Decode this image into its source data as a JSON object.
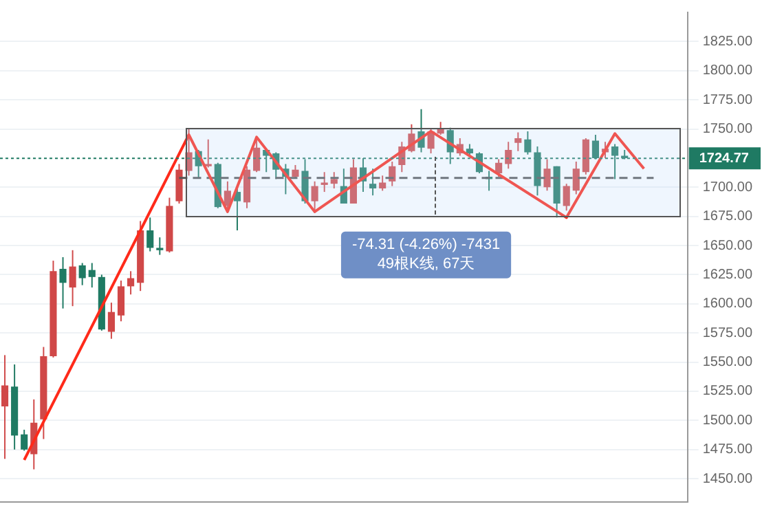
{
  "chart_data": {
    "type": "candlestick",
    "categories": [
      null,
      null,
      null,
      null,
      null,
      null,
      null,
      null,
      null,
      null,
      null,
      null,
      null,
      null,
      null,
      null,
      null,
      null,
      null,
      null,
      null,
      null,
      null,
      null,
      null,
      null,
      null,
      null,
      null,
      null,
      null,
      null,
      null,
      null,
      null,
      null,
      null,
      null,
      null,
      null,
      null,
      null,
      null,
      null,
      null,
      null,
      null,
      null,
      null,
      null,
      null,
      null,
      null,
      null,
      null,
      null,
      null,
      null,
      null,
      null,
      null,
      null,
      null,
      null,
      null,
      null,
      null,
      null,
      null,
      null,
      null
    ],
    "ohlc": [
      [
        1512,
        1556,
        1467,
        1530
      ],
      [
        1529,
        1548,
        1475,
        1487
      ],
      [
        1488,
        1492,
        1474,
        1475
      ],
      [
        1471,
        1518,
        1458,
        1498
      ],
      [
        1501,
        1563,
        1484,
        1555
      ],
      [
        1555,
        1637,
        1554,
        1628
      ],
      [
        1630,
        1640,
        1596,
        1618
      ],
      [
        1614,
        1646,
        1598,
        1632
      ],
      [
        1633,
        1635,
        1616,
        1622
      ],
      [
        1629,
        1635,
        1614,
        1623
      ],
      [
        1623,
        1625,
        1577,
        1578
      ],
      [
        1576,
        1601,
        1570,
        1593
      ],
      [
        1590,
        1620,
        1585,
        1615
      ],
      [
        1615,
        1628,
        1608,
        1622
      ],
      [
        1618,
        1671,
        1611,
        1663
      ],
      [
        1663,
        1674,
        1645,
        1648
      ],
      [
        1648,
        1657,
        1642,
        1646
      ],
      [
        1645,
        1691,
        1644,
        1684
      ],
      [
        1688,
        1720,
        1686,
        1715
      ],
      [
        1714,
        1750,
        1710,
        1730
      ],
      [
        1731,
        1732,
        1708,
        1718
      ],
      [
        1718,
        1741,
        1717,
        1720
      ],
      [
        1720,
        1721,
        1682,
        1683
      ],
      [
        1684,
        1705,
        1679,
        1697
      ],
      [
        1696,
        1701,
        1663,
        1688
      ],
      [
        1687,
        1718,
        1682,
        1715
      ],
      [
        1714,
        1741,
        1713,
        1734
      ],
      [
        1732,
        1733,
        1713,
        1727
      ],
      [
        1729,
        1730,
        1707,
        1715
      ],
      [
        1716,
        1720,
        1694,
        1709
      ],
      [
        1709,
        1719,
        1708,
        1715
      ],
      [
        1714,
        1724,
        1686,
        1688
      ],
      [
        1688,
        1705,
        1678,
        1701
      ],
      [
        1702,
        1713,
        1696,
        1704
      ],
      [
        1703,
        1713,
        1699,
        1707
      ],
      [
        1701,
        1716,
        1686,
        1686
      ],
      [
        1686,
        1724,
        1686,
        1717
      ],
      [
        1717,
        1725,
        1696,
        1705
      ],
      [
        1703,
        1716,
        1693,
        1699
      ],
      [
        1699,
        1710,
        1697,
        1704
      ],
      [
        1705,
        1722,
        1701,
        1718
      ],
      [
        1719,
        1739,
        1713,
        1735
      ],
      [
        1731,
        1754,
        1730,
        1746
      ],
      [
        1748,
        1767,
        1730,
        1734
      ],
      [
        1733,
        1750,
        1729,
        1748
      ],
      [
        1746,
        1756,
        1745,
        1750
      ],
      [
        1749,
        1751,
        1720,
        1730
      ],
      [
        1729,
        1742,
        1727,
        1737
      ],
      [
        1733,
        1737,
        1727,
        1729
      ],
      [
        1729,
        1730,
        1712,
        1713
      ],
      [
        1709,
        1714,
        1697,
        1707
      ],
      [
        1712,
        1724,
        1709,
        1721
      ],
      [
        1720,
        1739,
        1716,
        1732
      ],
      [
        1738,
        1747,
        1731,
        1742
      ],
      [
        1741,
        1748,
        1728,
        1730
      ],
      [
        1730,
        1735,
        1693,
        1701
      ],
      [
        1700,
        1724,
        1697,
        1716
      ],
      [
        1718,
        1718,
        1674,
        1686
      ],
      [
        1684,
        1703,
        1680,
        1701
      ],
      [
        1697,
        1722,
        1694,
        1716
      ],
      [
        1713,
        1742,
        1711,
        1741
      ],
      [
        1740,
        1745,
        1724,
        1725
      ],
      [
        1730,
        1739,
        1725,
        1733
      ],
      [
        1735,
        1737,
        1707,
        1727
      ],
      [
        1727,
        1732,
        1724,
        1725
      ],
      null,
      null,
      null,
      null,
      null,
      null
    ],
    "colors": [
      "#d04848",
      "#1f7a63",
      "#1f7a63",
      "#d04848",
      "#d04848",
      "#d04848",
      "#1f7a63",
      "#d04848",
      "#1f7a63",
      "#1f7a63",
      "#1f7a63",
      "#d04848",
      "#d04848",
      "#d04848",
      "#d04848",
      "#1f7a63",
      "#1f7a63",
      "#d04848",
      "#d04848",
      "#d04848",
      "#1f7a63",
      "#d04848",
      "#1f7a63",
      "#d04848",
      "#1f7a63",
      "#d04848",
      "#d04848",
      "#1f7a63",
      "#1f7a63",
      "#1f7a63",
      "#d04848",
      "#1f7a63",
      "#d04848",
      "#d04848",
      "#d04848",
      "#1f7a63",
      "#d04848",
      "#1f7a63",
      "#1f7a63",
      "#d04848",
      "#d04848",
      "#d04848",
      "#d04848",
      "#1f7a63",
      "#d04848",
      "#d04848",
      "#1f7a63",
      "#d04848",
      "#1f7a63",
      "#1f7a63",
      "#1f7a63",
      "#d04848",
      "#d04848",
      "#d04848",
      "#1f7a63",
      "#1f7a63",
      "#d04848",
      "#1f7a63",
      "#d04848",
      "#d04848",
      "#d04848",
      "#1f7a63",
      "#d04848",
      "#1f7a63",
      "#1f7a63",
      null,
      null,
      null,
      null,
      null,
      null
    ],
    "series": [
      {
        "type": "line",
        "color": "#ff2a1a",
        "values": [
          null,
          null,
          1466,
          null,
          null,
          null,
          null,
          null,
          null,
          null,
          null,
          null,
          null,
          null,
          null,
          null,
          null,
          null,
          null,
          1745,
          null,
          null,
          null,
          1679,
          null,
          null,
          1743,
          null,
          null,
          null,
          null,
          null,
          1679,
          null,
          null,
          null,
          null,
          null,
          null,
          null,
          null,
          null,
          null,
          null,
          1748,
          null,
          null,
          null,
          null,
          null,
          null,
          null,
          null,
          null,
          null,
          null,
          null,
          null,
          1674,
          null,
          null,
          null,
          null,
          1746,
          null,
          null,
          1716,
          null,
          null,
          null,
          null
        ]
      },
      {
        "type": "line",
        "color": "#555555",
        "line_style": "dashed",
        "values": [
          null,
          null,
          null,
          null,
          null,
          null,
          null,
          null,
          null,
          null,
          null,
          null,
          null,
          null,
          null,
          null,
          null,
          null,
          1708,
          null,
          null,
          null,
          null,
          null,
          null,
          null,
          null,
          null,
          null,
          null,
          null,
          null,
          null,
          null,
          null,
          null,
          null,
          null,
          null,
          null,
          null,
          null,
          null,
          null,
          null,
          null,
          null,
          null,
          null,
          null,
          null,
          null,
          null,
          null,
          null,
          null,
          null,
          null,
          null,
          null,
          null,
          null,
          null,
          null,
          null,
          null,
          null,
          1708,
          null,
          null,
          null
        ]
      }
    ],
    "ylim": [
      1430,
      1850
    ],
    "yticks": [
      {
        "value": 1450,
        "label": "1450.00"
      },
      {
        "value": 1475,
        "label": "1475.00"
      },
      {
        "value": 1500,
        "label": "1500.00"
      },
      {
        "value": 1525,
        "label": "1525.00"
      },
      {
        "value": 1550,
        "label": "1550.00"
      },
      {
        "value": 1575,
        "label": "1575.00"
      },
      {
        "value": 1600,
        "label": "1600.00"
      },
      {
        "value": 1625,
        "label": "1625.00"
      },
      {
        "value": 1650,
        "label": "1650.00"
      },
      {
        "value": 1675,
        "label": "1675.00"
      },
      {
        "value": 1700,
        "label": "1700.00"
      },
      {
        "value": 1750,
        "label": "1750.00"
      },
      {
        "value": 1775,
        "label": "1775.00"
      },
      {
        "value": 1800,
        "label": "1800.00"
      },
      {
        "value": 1825,
        "label": "1825.00"
      }
    ],
    "ref_lines": [
      {
        "axis": "y",
        "value": 1724.77,
        "label": "1724.77",
        "color": "#1f7a63",
        "line_style": "dotted"
      }
    ],
    "annotations": [
      "-74.31 (-4.26%) -7431",
      "49根K线, 67天"
    ],
    "grid": "y",
    "tick_labels": "y",
    "legend": false
  }
}
